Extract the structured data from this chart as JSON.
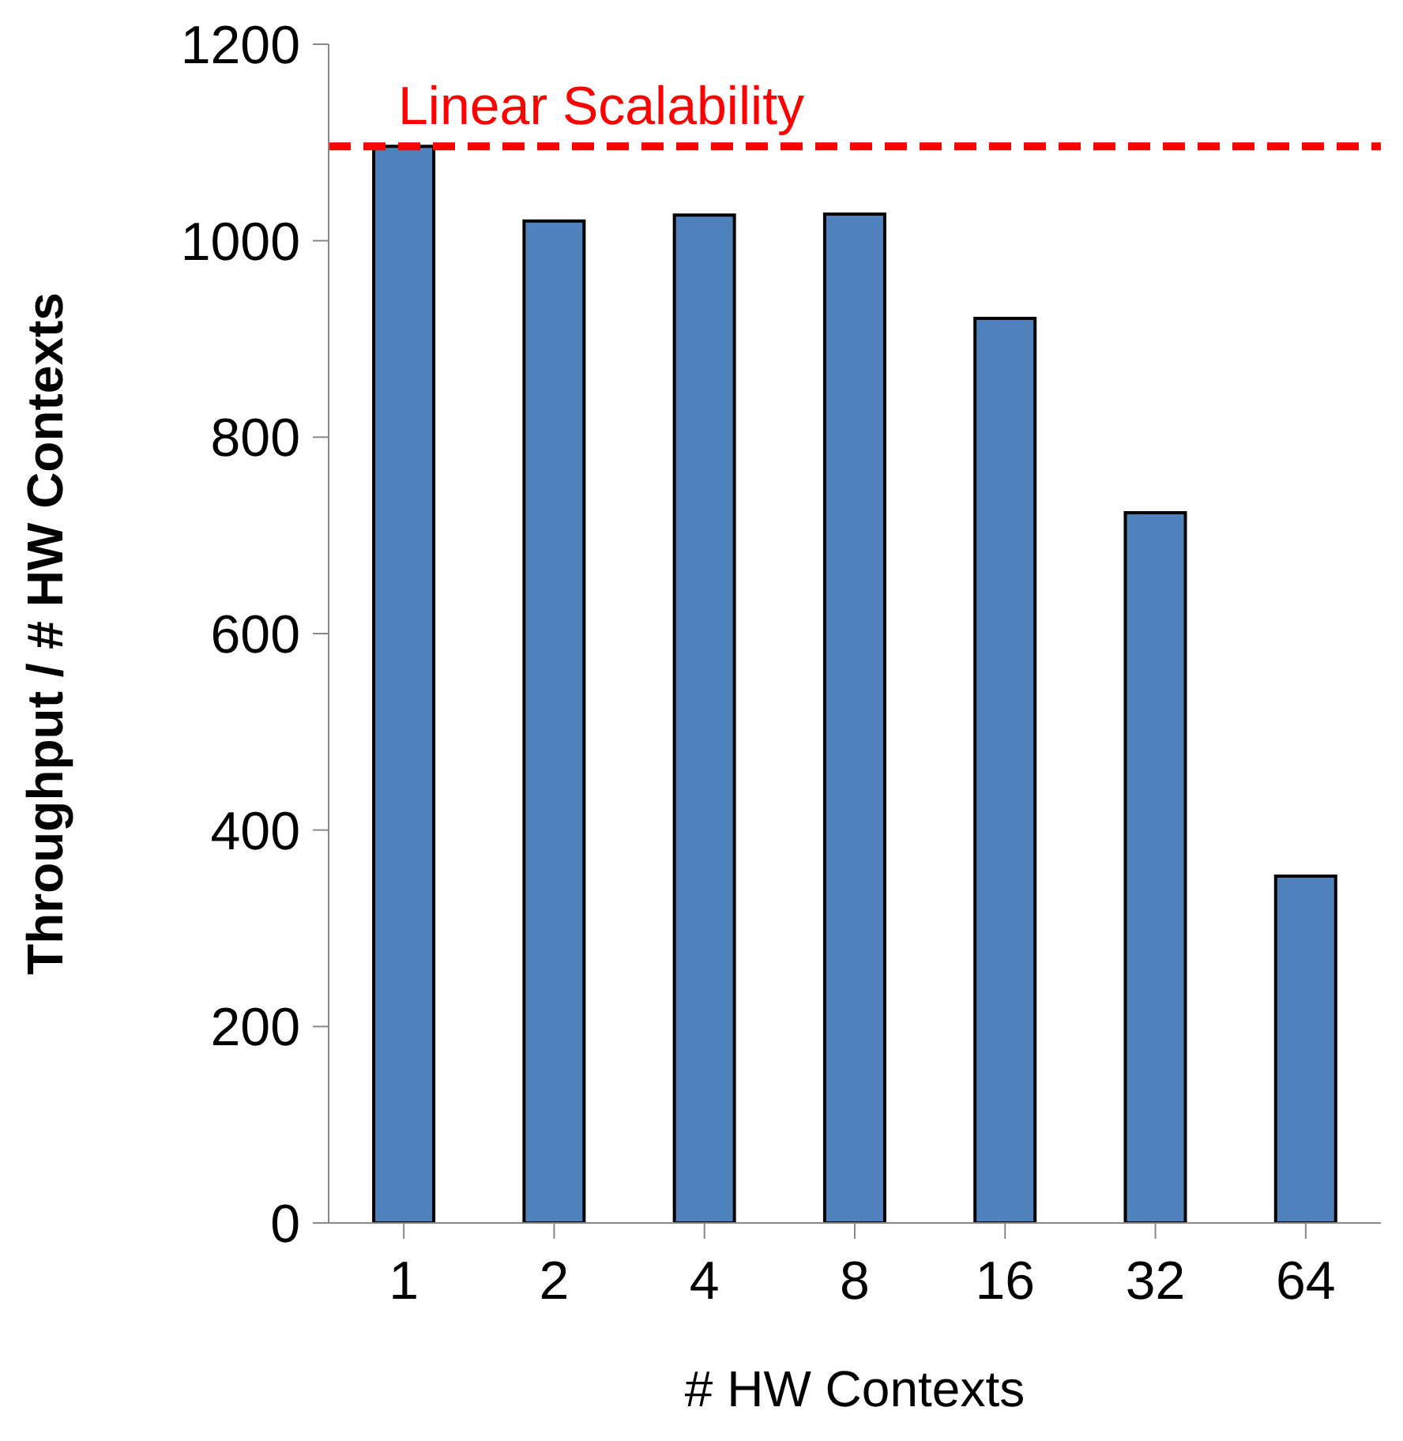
{
  "chart_data": {
    "type": "bar",
    "xlabel": "# HW Contexts",
    "ylabel": "Throughput / # HW Contexts",
    "categories": [
      "1",
      "2",
      "4",
      "8",
      "16",
      "32",
      "64"
    ],
    "values": [
      1096,
      1020,
      1026,
      1027,
      921,
      723,
      353
    ],
    "color": "#4f81bd",
    "ylim": [
      0,
      1200
    ],
    "yticks": [
      0,
      200,
      400,
      600,
      800,
      1000,
      1200
    ],
    "grid": false,
    "legend": false,
    "ref_lines": [
      {
        "axis": "y",
        "value": 1096,
        "label": "Linear Scalability",
        "color": "#ff0000",
        "line_style": "dashed"
      }
    ]
  }
}
